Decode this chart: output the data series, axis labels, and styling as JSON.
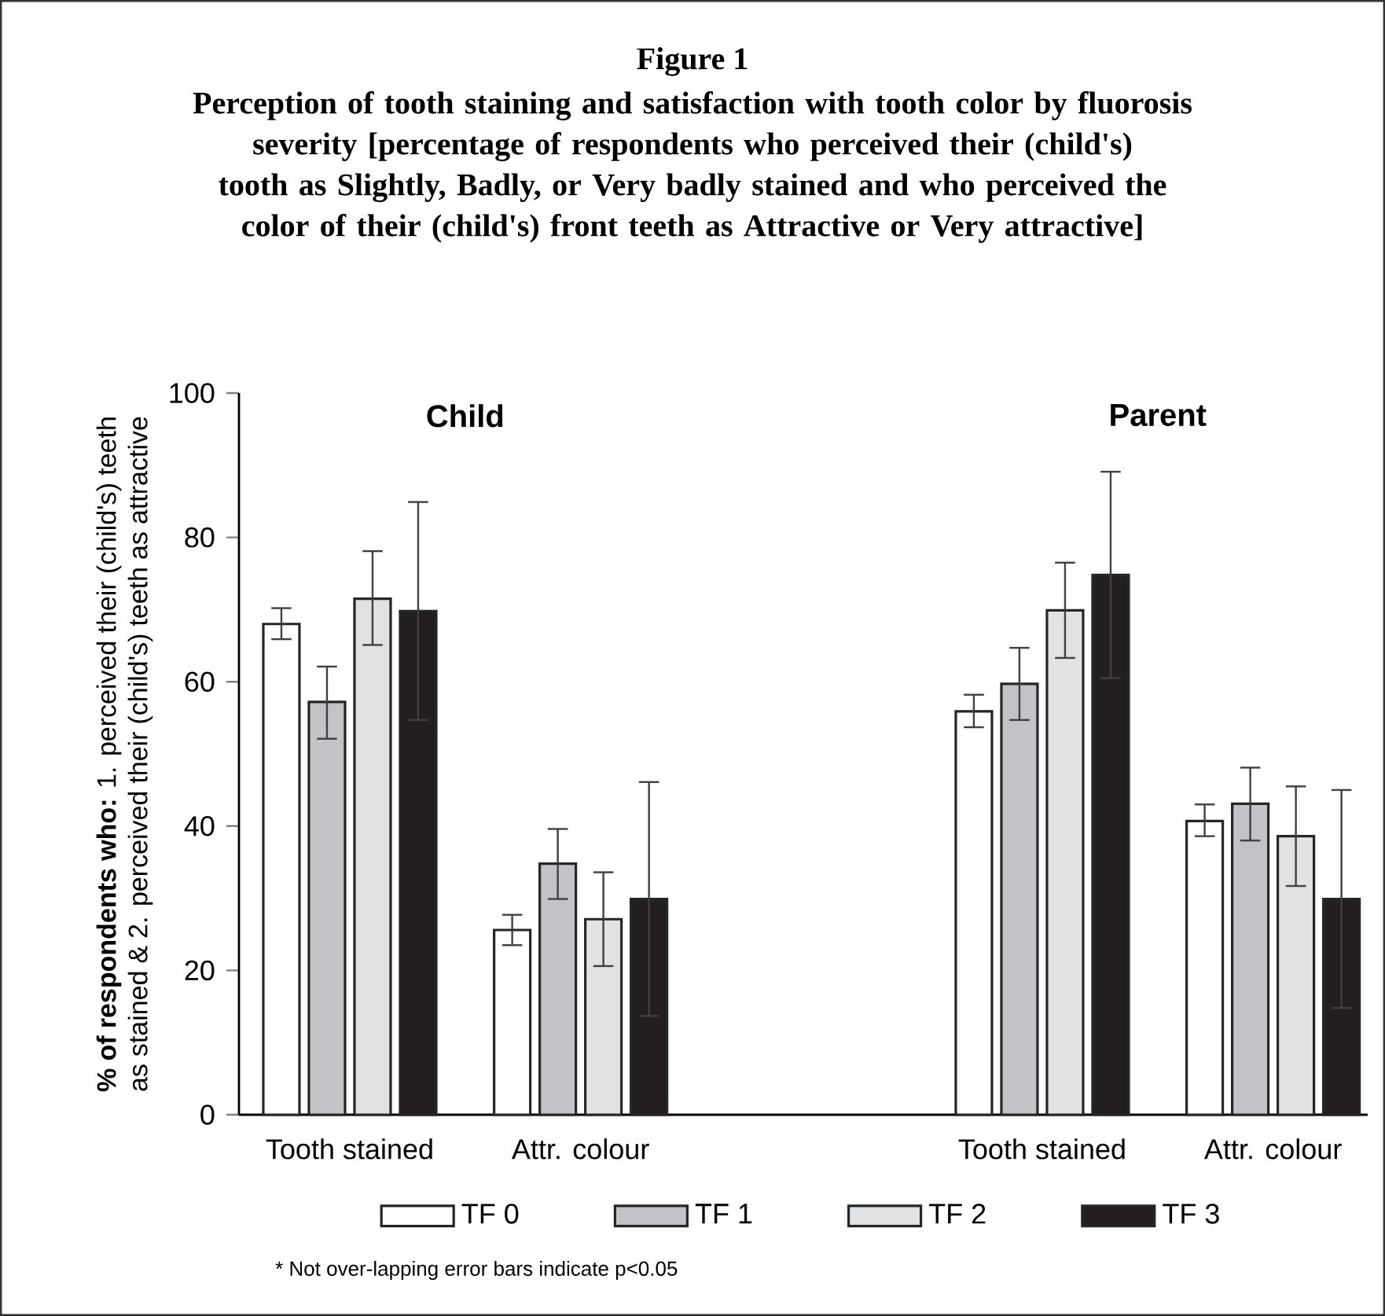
{
  "chart_data": {
    "type": "bar",
    "title": "Figure 1",
    "subtitle": "Perception of tooth staining and satisfaction with tooth color by fluorosis severity [percentage of respondents who perceived their (child's) tooth as Slightly, Badly, or Very badly stained and who perceived the color of their (child's) front teeth as Attractive or Very attractive]",
    "ylabel": "**% of respondents who:** 1. perceived their (child's) teeth as stained & 2. perceived their (child's) teeth as attractive",
    "categories": [
      "Tooth stained",
      "Attr. colour",
      null,
      "Tooth stained",
      "Attr. colour"
    ],
    "series": [
      {
        "name": "TF 0",
        "color": "#ffffff",
        "values": [
          68.0,
          25.6,
          null,
          55.9,
          40.7
        ],
        "errors": [
          [
            65.9,
            70.2
          ],
          [
            23.5,
            27.7
          ],
          null,
          [
            53.7,
            58.2
          ],
          [
            38.6,
            43.0
          ]
        ]
      },
      {
        "name": "TF 1",
        "color": "#c2c3c7",
        "values": [
          57.2,
          34.8,
          null,
          59.7,
          43.1
        ],
        "errors": [
          [
            52.1,
            62.1
          ],
          [
            29.9,
            39.6
          ],
          null,
          [
            54.7,
            64.7
          ],
          [
            38.0,
            48.1
          ]
        ]
      },
      {
        "name": "TF 2",
        "color": "#e1e2e4",
        "values": [
          71.5,
          27.1,
          null,
          69.9,
          38.6
        ],
        "errors": [
          [
            65.1,
            78.1
          ],
          [
            20.6,
            33.6
          ],
          null,
          [
            63.3,
            76.5
          ],
          [
            31.7,
            45.5
          ]
        ]
      },
      {
        "name": "TF 3",
        "color": "#231f20",
        "values": [
          69.8,
          29.9,
          null,
          74.8,
          29.9
        ],
        "errors": [
          15.1,
          16.2,
          null,
          14.3,
          15.1
        ]
      }
    ],
    "ylim": [
      0,
      100
    ],
    "yticks": [
      0,
      20,
      40,
      60,
      80,
      100
    ],
    "grid": false,
    "legend": "bottom",
    "annotations": [
      "Child",
      "Parent",
      "* Not over-lapping error bars indicate p<0.05"
    ]
  }
}
